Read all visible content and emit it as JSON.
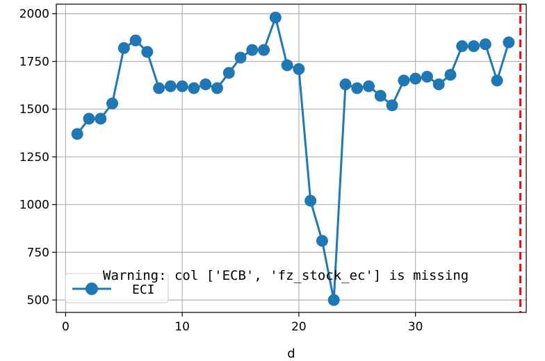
{
  "chart_data": {
    "type": "line",
    "xlabel": "d",
    "ylabel": "",
    "xlim": [
      -0.8,
      39.5
    ],
    "ylim": [
      435,
      2050
    ],
    "xticks": [
      0,
      10,
      20,
      30
    ],
    "yticks": [
      500,
      750,
      1000,
      1250,
      1500,
      1750,
      2000
    ],
    "grid": true,
    "legend_position": "lower-left",
    "series": [
      {
        "name": "ECI",
        "color": "#1f77b4",
        "marker": "circle",
        "x": [
          1,
          2,
          3,
          4,
          5,
          6,
          7,
          8,
          9,
          10,
          11,
          12,
          13,
          14,
          15,
          16,
          17,
          18,
          19,
          20,
          21,
          22,
          23,
          24,
          25,
          26,
          27,
          28,
          29,
          30,
          31,
          32,
          33,
          34,
          35,
          36,
          37,
          38
        ],
        "values": [
          1370,
          1450,
          1450,
          1530,
          1820,
          1860,
          1800,
          1610,
          1620,
          1620,
          1610,
          1630,
          1610,
          1690,
          1770,
          1810,
          1810,
          1980,
          1730,
          1710,
          1020,
          810,
          500,
          1630,
          1610,
          1620,
          1570,
          1520,
          1650,
          1660,
          1670,
          1630,
          1680,
          1830,
          1830,
          1840,
          1650,
          1850
        ]
      }
    ],
    "vline": {
      "x": 39,
      "color": "#ff0000",
      "style": "dashed"
    },
    "annotation": "Warning: col ['ECB', 'fz_stock_ec'] is missing"
  }
}
